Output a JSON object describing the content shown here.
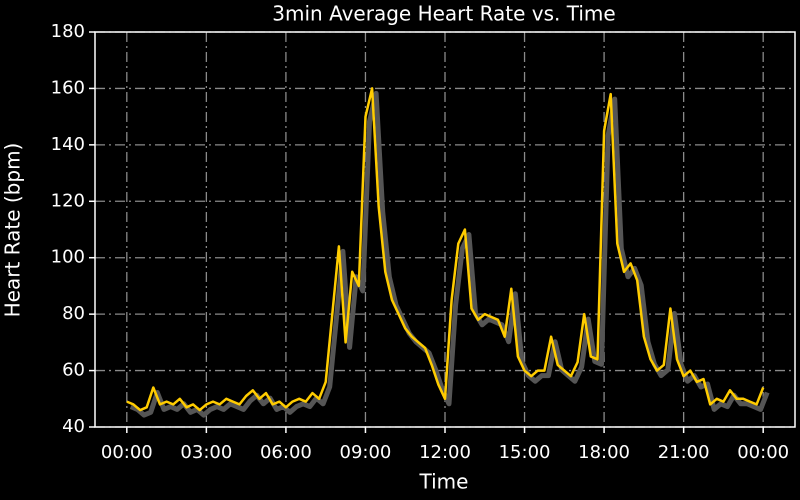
{
  "chart_data": {
    "type": "line",
    "title": "3min Average Heart Rate vs. Time",
    "xlabel": "Time",
    "ylabel": "Heart Rate (bpm)",
    "x": [
      0,
      0.25,
      0.5,
      0.75,
      1,
      1.25,
      1.5,
      1.75,
      2,
      2.25,
      2.5,
      2.75,
      3,
      3.25,
      3.5,
      3.75,
      4,
      4.25,
      4.5,
      4.75,
      5,
      5.25,
      5.5,
      5.75,
      6,
      6.25,
      6.5,
      6.75,
      7,
      7.25,
      7.5,
      7.75,
      8,
      8.25,
      8.5,
      8.75,
      9,
      9.25,
      9.5,
      9.75,
      10,
      10.25,
      10.5,
      10.75,
      11,
      11.25,
      11.5,
      11.75,
      12,
      12.25,
      12.5,
      12.75,
      13,
      13.25,
      13.5,
      13.75,
      14,
      14.25,
      14.5,
      14.75,
      15,
      15.25,
      15.5,
      15.75,
      16,
      16.25,
      16.5,
      16.75,
      17,
      17.25,
      17.5,
      17.75,
      18,
      18.25,
      18.5,
      18.75,
      19,
      19.25,
      19.5,
      19.75,
      20,
      20.25,
      20.5,
      20.75,
      21,
      21.25,
      21.5,
      21.75,
      22,
      22.25,
      22.5,
      22.75,
      23,
      23.25,
      23.5,
      23.75,
      24
    ],
    "series": [
      {
        "name": "Heart Rate",
        "color": "#ffcc00",
        "shadow_color": "#555555",
        "values": [
          49,
          48,
          46,
          47,
          54,
          48,
          49,
          48,
          50,
          47,
          48,
          46,
          48,
          49,
          48,
          50,
          49,
          48,
          51,
          53,
          50,
          52,
          48,
          49,
          47,
          49,
          50,
          49,
          52,
          50,
          56,
          80,
          104,
          70,
          95,
          90,
          150,
          160,
          118,
          95,
          85,
          80,
          75,
          72,
          70,
          68,
          62,
          55,
          50,
          85,
          105,
          110,
          82,
          78,
          80,
          79,
          78,
          72,
          89,
          65,
          60,
          58,
          60,
          60,
          72,
          62,
          60,
          58,
          63,
          80,
          65,
          64,
          145,
          158,
          105,
          95,
          98,
          92,
          72,
          64,
          60,
          62,
          82,
          64,
          58,
          60,
          56,
          57,
          48,
          50,
          49,
          53,
          50,
          50,
          49,
          48,
          54
        ]
      }
    ],
    "xlim": [
      -1.2,
      25.2
    ],
    "ylim": [
      40,
      180
    ],
    "xticks": [
      {
        "value": 0,
        "label": "00:00"
      },
      {
        "value": 3,
        "label": "03:00"
      },
      {
        "value": 6,
        "label": "06:00"
      },
      {
        "value": 9,
        "label": "09:00"
      },
      {
        "value": 12,
        "label": "12:00"
      },
      {
        "value": 15,
        "label": "15:00"
      },
      {
        "value": 18,
        "label": "18:00"
      },
      {
        "value": 21,
        "label": "21:00"
      },
      {
        "value": 24,
        "label": "00:00"
      }
    ],
    "yticks": [
      40,
      60,
      80,
      100,
      120,
      140,
      160,
      180
    ],
    "grid": true
  }
}
